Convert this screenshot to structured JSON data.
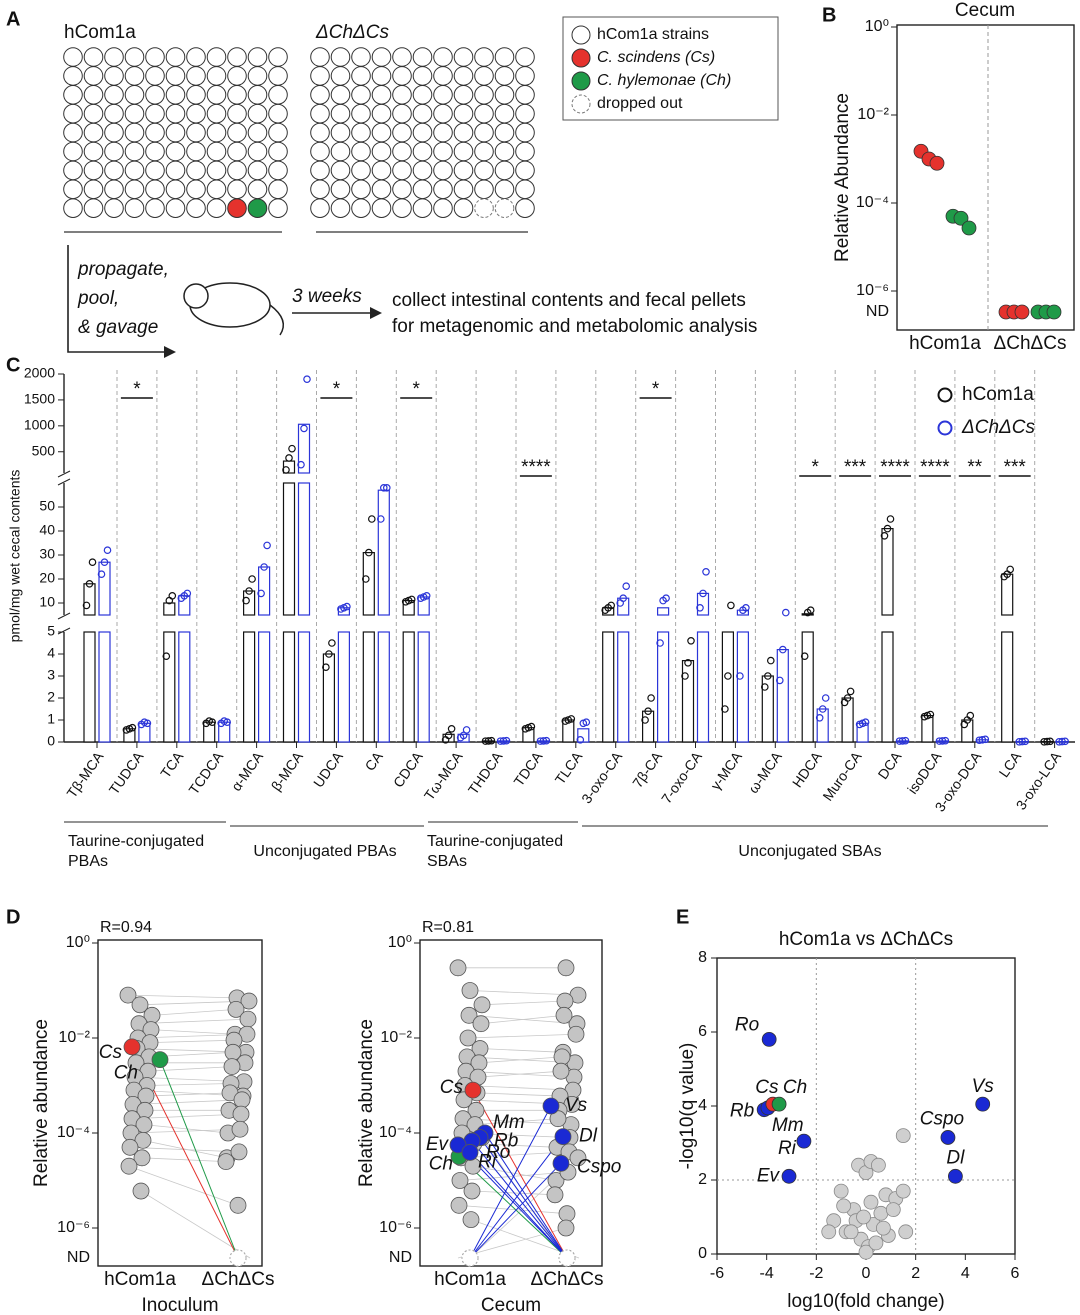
{
  "panel_labels": [
    "A",
    "B",
    "C",
    "D",
    "E"
  ],
  "panel_a": {
    "left_title": "hCom1a",
    "right_title": "ΔChΔCs",
    "legend": [
      "hCom1a strains",
      "C. scindens (Cs)",
      "C. hylemonae (Ch)",
      "dropped out"
    ],
    "steps": [
      "propagate,",
      "pool,",
      "& gavage"
    ],
    "duration": "3 weeks",
    "outcome": [
      "collect intestinal contents and fecal pellets",
      "for metagenomic and metabolomic analysis"
    ]
  },
  "chart_data": [
    {
      "type": "dot",
      "title": "Cecum",
      "y_label": "Relative Abundance",
      "categories": [
        "hCom1a",
        "ΔChΔCs"
      ],
      "log_y": true,
      "ylim": [
        1e-06,
        1
      ],
      "yticks": [
        {
          "value": 1,
          "label": "10⁰"
        },
        {
          "value": 0.01,
          "label": "10⁻²"
        },
        {
          "value": 0.0001,
          "label": "10⁻⁴"
        },
        {
          "value": 1e-06,
          "label": "10⁻⁶"
        }
      ],
      "nd_label": "ND",
      "series": [
        {
          "color": "#e5322d",
          "values": [
            [
              0.0015,
              0.001,
              0.0008
            ],
            [
              null,
              null,
              null
            ]
          ]
        },
        {
          "color": "#1f9a48",
          "values": [
            [
              5e-05,
              4.5e-05,
              2.7e-05
            ],
            [
              null,
              null,
              null
            ]
          ]
        }
      ]
    },
    {
      "type": "bar",
      "y_label": "pmol/mg wet cecal contents",
      "categories": [
        "Tβ-MCA",
        "TUDCA",
        "TCA",
        "TCDCA",
        "α-MCA",
        "β-MCA",
        "UDCA",
        "CA",
        "CDCA",
        "Tω-MCA",
        "THDCA",
        "TDCA",
        "TLCA",
        "3-oxo-CA",
        "7β-CA",
        "7-oxo-CA",
        "γ-MCA",
        "ω-MCA",
        "HDCA",
        "Muro-CA",
        "DCA",
        "isoDCA",
        "3-oxo-DCA",
        "LCA",
        "3-oxo-LCA"
      ],
      "y_segments": [
        {
          "ylim": [
            0,
            5
          ],
          "yticks": [
            0,
            1,
            2,
            3,
            4,
            5
          ]
        },
        {
          "ylim": [
            5,
            60
          ],
          "yticks": [
            10,
            20,
            30,
            40,
            50
          ]
        },
        {
          "ylim": [
            90,
            2000
          ],
          "yticks": [
            500,
            1000,
            1500,
            2000
          ]
        }
      ],
      "groups": [
        [
          "Taurine-conjugated",
          "PBAs"
        ],
        [
          "Unconjugated PBAs"
        ],
        [
          "Taurine-conjugated",
          "SBAs"
        ],
        [
          "Unconjugated SBAs"
        ]
      ],
      "series": [
        {
          "name": "hCom1a",
          "color": "#111111",
          "values": [
            18,
            0.6,
            10,
            0.9,
            15,
            320,
            4,
            31,
            11,
            0.35,
            0.05,
            0.65,
            1,
            8,
            1.4,
            3.7,
            5,
            3,
            5.5,
            2,
            41,
            1.2,
            1,
            22,
            0.02
          ],
          "points": [
            [
              9,
              18,
              27
            ],
            [
              0.55,
              0.6,
              0.65
            ],
            [
              3.9,
              11,
              13
            ],
            [
              0.85,
              0.95,
              0.9
            ],
            [
              11,
              15,
              20
            ],
            [
              150,
              380,
              560
            ],
            [
              3.4,
              4,
              4.5
            ],
            [
              20,
              31,
              45
            ],
            [
              10.5,
              11,
              11.5
            ],
            [
              0.1,
              0.3,
              0.6
            ],
            [
              0.04,
              0.05,
              0.06
            ],
            [
              0.6,
              0.65,
              0.7
            ],
            [
              0.95,
              1,
              1.05
            ],
            [
              7,
              8,
              9
            ],
            [
              1,
              1.4,
              2
            ],
            [
              3,
              3.6,
              4.6
            ],
            [
              1.5,
              3,
              9
            ],
            [
              2.5,
              3,
              3.7
            ],
            [
              3.9,
              6,
              7
            ],
            [
              1.8,
              2,
              2.3
            ],
            [
              38,
              41,
              45
            ],
            [
              1.15,
              1.2,
              1.25
            ],
            [
              0.8,
              1,
              1.2
            ],
            [
              21,
              22,
              24
            ],
            [
              0.01,
              0.02,
              0.03
            ]
          ]
        },
        {
          "name": "ΔChΔCs",
          "color": "#2b35d8",
          "values": [
            27,
            0.85,
            13,
            0.9,
            25,
            1030,
            8,
            57,
            12.5,
            0.35,
            0.05,
            0.05,
            0.6,
            12,
            8,
            14,
            7,
            4.2,
            1.5,
            0.85,
            0.05,
            0.05,
            0.1,
            0.02,
            0.02
          ],
          "points": [
            [
              22,
              27,
              32
            ],
            [
              0.8,
              0.9,
              0.85
            ],
            [
              12,
              13,
              14
            ],
            [
              0.85,
              0.95,
              0.9
            ],
            [
              14,
              25,
              34
            ],
            [
              250,
              950,
              1900
            ],
            [
              7.5,
              8,
              8.5
            ],
            [
              45,
              58,
              58
            ],
            [
              12,
              12.5,
              13
            ],
            [
              0.2,
              0.3,
              0.55
            ],
            [
              0.04,
              0.05,
              0.06
            ],
            [
              0.04,
              0.05,
              0.06
            ],
            [
              0.1,
              0.85,
              0.9
            ],
            [
              10,
              12,
              17
            ],
            [
              4.5,
              11,
              12
            ],
            [
              8,
              14,
              23
            ],
            [
              3,
              7,
              8
            ],
            [
              2.8,
              4.2,
              6
            ],
            [
              1.1,
              1.5,
              2
            ],
            [
              0.8,
              0.85,
              0.9
            ],
            [
              0.04,
              0.05,
              0.06
            ],
            [
              0.04,
              0.05,
              0.06
            ],
            [
              0.08,
              0.1,
              0.12
            ],
            [
              0.01,
              0.02,
              0.03
            ],
            [
              0.01,
              0.02,
              0.03
            ]
          ]
        }
      ],
      "significance": [
        null,
        "*",
        null,
        null,
        null,
        null,
        "*",
        null,
        "*",
        null,
        null,
        "****",
        null,
        null,
        "*",
        null,
        null,
        null,
        "*",
        "***",
        "****",
        "****",
        "**",
        "***",
        null
      ]
    },
    {
      "type": "paired",
      "annotation": "R=0.94",
      "x_label": "Inoculum",
      "y_label": "Relative abundance",
      "categories": [
        "hCom1a",
        "ΔChΔCs"
      ],
      "log_y": true,
      "ylim": [
        1e-06,
        1
      ],
      "yticks": [
        {
          "value": 1,
          "label": "10⁰"
        },
        {
          "value": 0.01,
          "label": "10⁻²"
        },
        {
          "value": 0.0001,
          "label": "10⁻⁴"
        },
        {
          "value": 1e-06,
          "label": "10⁻⁶"
        }
      ],
      "nd_label": "ND",
      "series": [
        {
          "color": "#c4c4c4",
          "values": [
            [
              0.08,
              0.07
            ],
            [
              0.05,
              0.06
            ],
            [
              0.03,
              0.04
            ],
            [
              0.02,
              0.025
            ],
            [
              0.015,
              0.012
            ],
            [
              0.01,
              0.012
            ],
            [
              0.008,
              0.009
            ],
            [
              0.006,
              0.005
            ],
            [
              0.004,
              0.005
            ],
            [
              0.003,
              0.003
            ],
            [
              0.002,
              0.0025
            ],
            [
              0.0015,
              0.0012
            ],
            [
              0.001,
              0.0011
            ],
            [
              0.0008,
              0.0006
            ],
            [
              0.0006,
              0.0007
            ],
            [
              0.0004,
              0.0005
            ],
            [
              0.0003,
              0.0003
            ],
            [
              0.0002,
              0.00025
            ],
            [
              0.00015,
              0.0001
            ],
            [
              0.0001,
              0.00012
            ],
            [
              7e-05,
              3e-05
            ],
            [
              5e-05,
              4e-05
            ],
            [
              3e-05,
              2.5e-05
            ],
            [
              2e-05,
              3e-06
            ],
            [
              6e-06,
              null
            ]
          ]
        },
        {
          "color": "#e5322d",
          "labels": [
            "Cs"
          ],
          "values": [
            [
              0.0065,
              null
            ]
          ]
        },
        {
          "color": "#1f9a48",
          "labels": [
            "Ch"
          ],
          "values": [
            [
              0.0035,
              null
            ]
          ]
        }
      ]
    },
    {
      "type": "paired",
      "annotation": "R=0.81",
      "x_label": "Cecum",
      "y_label": "Relative abundance",
      "categories": [
        "hCom1a",
        "ΔChΔCs"
      ],
      "log_y": true,
      "ylim": [
        1e-06,
        1
      ],
      "yticks": [
        {
          "value": 1,
          "label": "10⁰"
        },
        {
          "value": 0.01,
          "label": "10⁻²"
        },
        {
          "value": 0.0001,
          "label": "10⁻⁴"
        },
        {
          "value": 1e-06,
          "label": "10⁻⁶"
        }
      ],
      "nd_label": "ND",
      "series": [
        {
          "color": "#c4c4c4",
          "values": [
            [
              0.3,
              0.3
            ],
            [
              0.1,
              0.08
            ],
            [
              0.05,
              0.06
            ],
            [
              0.03,
              0.02
            ],
            [
              0.02,
              0.03
            ],
            [
              0.01,
              0.012
            ],
            [
              0.006,
              0.005
            ],
            [
              0.004,
              0.003
            ],
            [
              0.003,
              0.004
            ],
            [
              0.002,
              0.0015
            ],
            [
              0.0015,
              0.002
            ],
            [
              0.001,
              0.0008
            ],
            [
              0.0007,
              0.0006
            ],
            [
              0.0005,
              0.0004
            ],
            [
              0.0003,
              0.0003
            ],
            [
              0.0002,
              0.00015
            ],
            [
              0.00015,
              0.0002
            ],
            [
              0.0001,
              8e-05
            ],
            [
              6e-05,
              5e-05
            ],
            [
              3e-05,
              4e-05
            ],
            [
              2e-05,
              1e-05
            ],
            [
              1e-05,
              1.5e-05
            ],
            [
              6e-06,
              5e-06
            ],
            [
              3e-06,
              2e-06
            ],
            [
              1.5e-06,
              null
            ],
            [
              null,
              1e-06
            ],
            [
              null,
              3e-05
            ],
            [
              8e-05,
              null
            ]
          ]
        },
        {
          "color": "#e5322d",
          "labels": [
            "Cs"
          ],
          "values": [
            [
              0.0008,
              null
            ]
          ]
        },
        {
          "color": "#1f9a48",
          "labels": [
            "Ch"
          ],
          "values": [
            [
              3.2e-05,
              null
            ]
          ]
        },
        {
          "color": "#1a29d4",
          "labels": [
            "Mm",
            "Rb",
            "Ro",
            "Ev",
            "Ri",
            "Vs",
            "Dl",
            "Cspo"
          ],
          "values": [
            [
              0.0001,
              null
            ],
            [
              8e-05,
              null
            ],
            [
              6.8e-05,
              null
            ],
            [
              5.6e-05,
              null
            ],
            [
              3.9e-05,
              null
            ],
            [
              null,
              0.00037
            ],
            [
              null,
              8.4e-05
            ],
            [
              null,
              2.3e-05
            ]
          ]
        }
      ]
    },
    {
      "type": "scatter",
      "title": "hCom1a vs ΔChΔCs",
      "x_label": "log10(fold change)",
      "y_label": "-log10(q value)",
      "xlim": [
        -6,
        6
      ],
      "xticks": [
        -6,
        -4,
        -2,
        0,
        2,
        4,
        6
      ],
      "ylim": [
        0,
        8
      ],
      "yticks": [
        0,
        2,
        4,
        6,
        8
      ],
      "threshold_x": [
        -2,
        2
      ],
      "threshold_y": [
        2
      ],
      "series": [
        {
          "color": "#cfcfcf",
          "x": [
            -0.3,
            0,
            0.2,
            0.5,
            -0.5,
            0.8,
            1.2,
            1.5,
            -1,
            -0.8,
            0.3,
            -0.2,
            0.1,
            -0.4,
            0.6,
            0.9,
            1.6,
            -1.3,
            -1.5,
            0,
            0.4,
            -0.6,
            0.2,
            1.1,
            -0.1,
            0.7,
            1.5,
            -0.9
          ],
          "values": [
            2.4,
            2.2,
            2.5,
            2.4,
            1.2,
            1.6,
            1.5,
            3.2,
            1.7,
            0.6,
            0.8,
            0.4,
            0.2,
            0.9,
            1.1,
            0.5,
            0.6,
            0.9,
            0.6,
            0.05,
            0.3,
            0.6,
            1.4,
            1.2,
            1,
            0.7,
            1.7,
            1.3
          ]
        },
        {
          "color": "#1a29d4",
          "labels": [
            "Ro",
            "Rb",
            "Mm",
            "Ri",
            "Ev",
            "Vs",
            "Cspo",
            "Dl"
          ],
          "x": [
            -3.9,
            -4.1,
            -3.95,
            -2.5,
            -3.1,
            4.7,
            3.3,
            3.6
          ],
          "values": [
            5.8,
            3.9,
            3.95,
            3.05,
            2.1,
            4.05,
            3.15,
            2.1
          ]
        },
        {
          "color": "#e5322d",
          "labels": [
            "Cs"
          ],
          "x": [
            -3.75
          ],
          "values": [
            4.05
          ]
        },
        {
          "color": "#1f9a48",
          "labels": [
            "Ch"
          ],
          "x": [
            -3.5
          ],
          "values": [
            4.05
          ]
        }
      ]
    }
  ]
}
